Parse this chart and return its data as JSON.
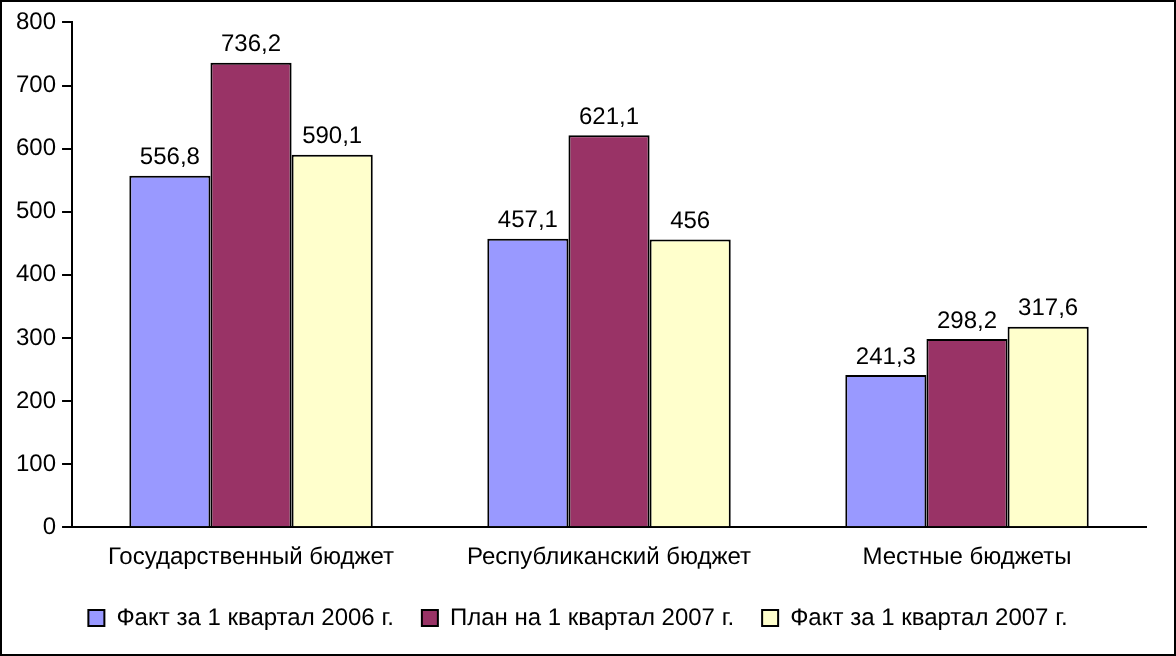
{
  "chart_data": {
    "type": "bar",
    "categories": [
      "Государственный бюджет",
      "Республиканский бюджет",
      "Местные бюджеты"
    ],
    "series": [
      {
        "name": "Факт за 1 квартал 2006 г.",
        "color": "#9999ff",
        "values": [
          556.8,
          457.1,
          241.3
        ],
        "value_labels": [
          "556,8",
          "457,1",
          "241,3"
        ]
      },
      {
        "name": "План на 1 квартал 2007 г.",
        "color": "#993366",
        "values": [
          736.2,
          621.1,
          298.2
        ],
        "value_labels": [
          "736,2",
          "621,1",
          "298,2"
        ]
      },
      {
        "name": "Факт за 1 квартал 2007 г.",
        "color": "#ffffcc",
        "values": [
          590.1,
          456,
          317.6
        ],
        "value_labels": [
          "590,1",
          "456",
          "317,6"
        ]
      }
    ],
    "ylim": [
      0,
      800
    ],
    "yticks": [
      0,
      100,
      200,
      300,
      400,
      500,
      600,
      700,
      800
    ],
    "grid": false,
    "legend": "bottom"
  }
}
